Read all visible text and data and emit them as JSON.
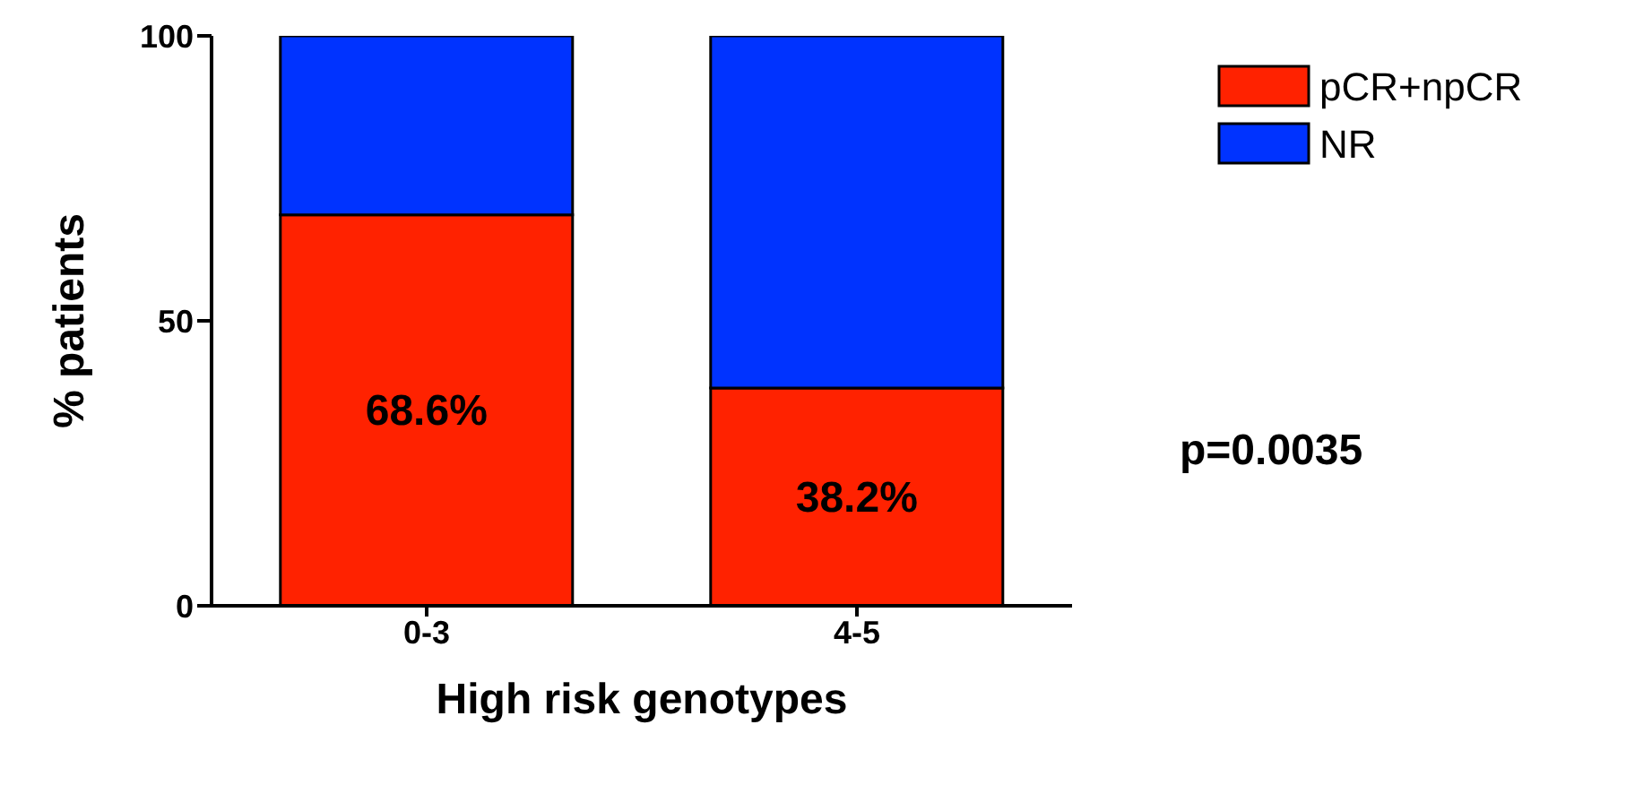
{
  "chart_data": {
    "type": "bar",
    "stacked": true,
    "xlabel": "High risk genotypes",
    "ylabel": "% patients",
    "categories": [
      "0-3",
      "4-5"
    ],
    "series": [
      {
        "name": "pCR+npCR",
        "color": "#ff2200",
        "values": [
          68.6,
          38.2
        ],
        "value_labels": [
          "68.6%",
          "38.2%"
        ]
      },
      {
        "name": "NR",
        "color": "#0033ff",
        "values": [
          31.4,
          61.8
        ]
      }
    ],
    "ylim": [
      0,
      100
    ],
    "yticks": [
      0,
      50,
      100
    ],
    "grid": false,
    "legend": "top right",
    "annotations": [
      "p=0.0035"
    ]
  }
}
